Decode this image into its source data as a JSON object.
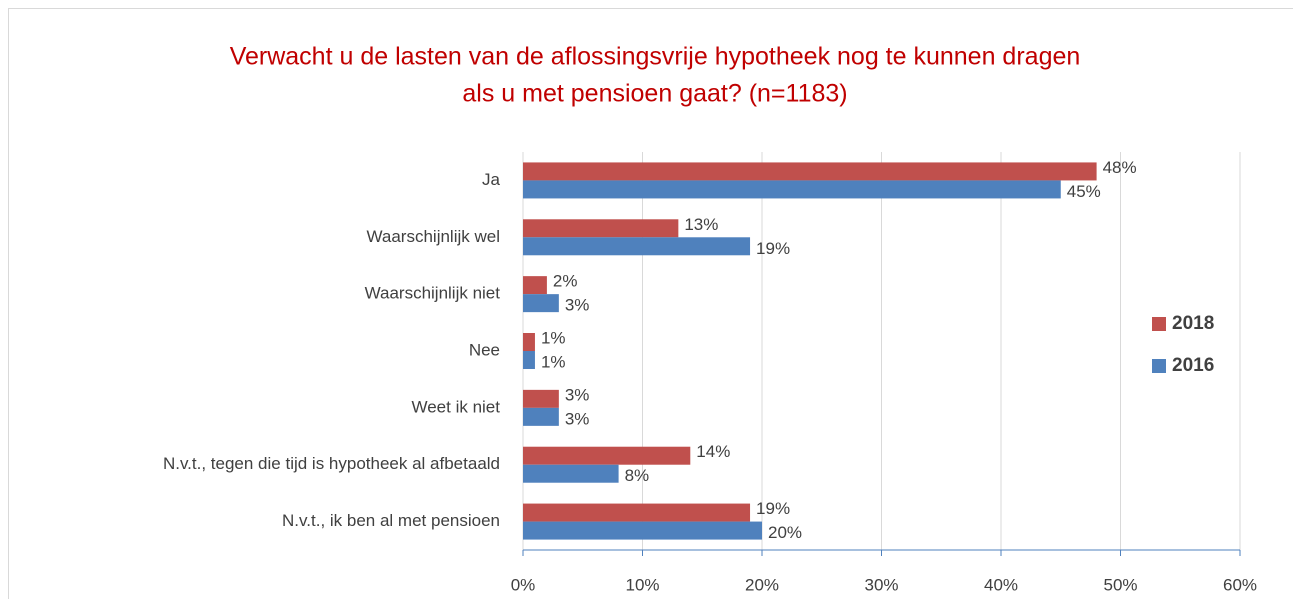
{
  "chart_data": {
    "type": "bar",
    "orientation": "horizontal",
    "title": [
      "Verwacht u de lasten van de aflossingsvrije hypotheek nog te kunnen dragen",
      "als u met pensioen gaat?  (n=1183)"
    ],
    "categories": [
      "Ja",
      "Waarschijnlijk wel",
      "Waarschijnlijk niet",
      "Nee",
      "Weet ik niet",
      "N.v.t., tegen die tijd is hypotheek al afbetaald",
      "N.v.t., ik ben al met pensioen"
    ],
    "series": [
      {
        "name": "2018",
        "color": "#c0504d",
        "values": [
          48,
          13,
          2,
          1,
          3,
          14,
          19
        ],
        "value_labels": [
          "48%",
          "13%",
          "2%",
          "1%",
          "3%",
          "14%",
          "19%"
        ]
      },
      {
        "name": "2016",
        "color": "#4f81bd",
        "values": [
          45,
          19,
          3,
          1,
          3,
          8,
          20
        ],
        "value_labels": [
          "45%",
          "19%",
          "3%",
          "1%",
          "3%",
          "8%",
          "20%"
        ]
      }
    ],
    "xlim": [
      0,
      60
    ],
    "xticks": [
      {
        "value": 0,
        "label": "0%"
      },
      {
        "value": 10,
        "label": "10%"
      },
      {
        "value": 20,
        "label": "20%"
      },
      {
        "value": 30,
        "label": "30%"
      },
      {
        "value": 40,
        "label": "40%"
      },
      {
        "value": 50,
        "label": "50%"
      },
      {
        "value": 60,
        "label": "60%"
      }
    ],
    "grid": true,
    "legend": "right"
  }
}
